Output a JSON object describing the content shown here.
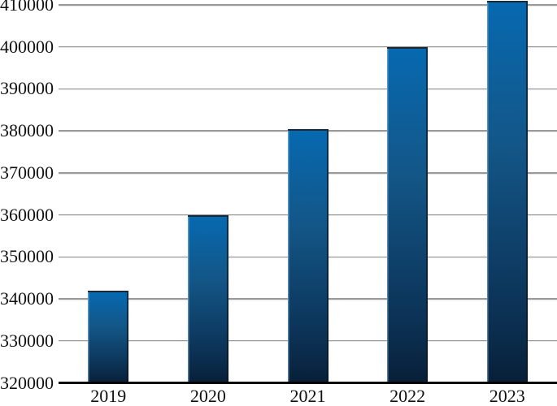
{
  "chart_data": {
    "type": "bar",
    "title": "",
    "xlabel": "",
    "ylabel": "",
    "categories": [
      "2019",
      "2020",
      "2021",
      "2022",
      "2023"
    ],
    "values": [
      342000,
      360000,
      380500,
      400000,
      411000
    ],
    "ylim": [
      320000,
      410000
    ],
    "ytick_step": 10000,
    "ytick_labels": [
      "320000",
      "330000",
      "340000",
      "350000",
      "360000",
      "370000",
      "380000",
      "390000",
      "400000",
      "410000"
    ],
    "grid": true,
    "legend": false,
    "colors": {
      "bar_gradient_top": "#0769b0",
      "bar_gradient_bottom": "#081f38",
      "bar_outline": "#1a2836",
      "gridline": "#9a9a9a",
      "axis": "#000000",
      "text": "#111111",
      "background": "#ffffff"
    }
  }
}
